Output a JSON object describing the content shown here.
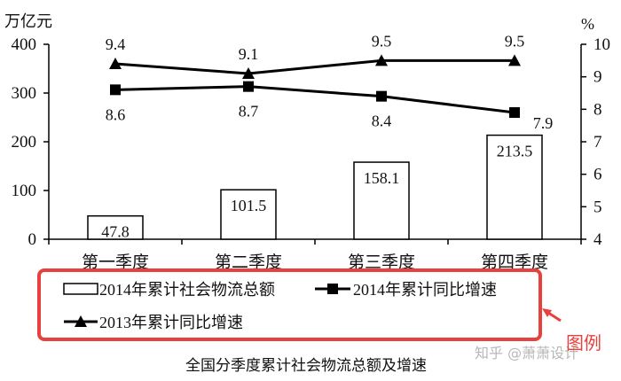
{
  "chart_data": {
    "type": "bar+line",
    "categories": [
      "第一季度",
      "第二季度",
      "第三季度",
      "第四季度"
    ],
    "left_axis": {
      "unit": "万亿元",
      "ticks": [
        0,
        100,
        200,
        300,
        400
      ],
      "range": [
        0,
        400
      ]
    },
    "right_axis": {
      "unit": "%",
      "ticks": [
        4,
        5,
        6,
        7,
        8,
        9,
        10
      ],
      "range": [
        4,
        10
      ]
    },
    "bars": {
      "name": "2014年累计社会物流总额",
      "values": [
        47.8,
        101.5,
        158.1,
        213.5
      ],
      "labels": [
        "47.8",
        "101.5",
        "158.1",
        "213.5"
      ]
    },
    "lines": [
      {
        "name": "2014年累计同比增速",
        "marker": "square",
        "values": [
          8.6,
          8.7,
          8.4,
          7.9
        ],
        "labels": [
          "8.6",
          "8.7",
          "8.4",
          "7.9"
        ]
      },
      {
        "name": "2013年累计同比增速",
        "marker": "triangle",
        "values": [
          9.4,
          9.1,
          9.5,
          9.5
        ],
        "labels": [
          "9.4",
          "9.1",
          "9.5",
          "9.5"
        ]
      }
    ],
    "legend_position": "bottom",
    "title": "全国分季度累计社会物流总额及增速"
  },
  "legend": {
    "items": [
      "2014年累计社会物流总额",
      "2014年累计同比增速",
      "2013年累计同比增速"
    ]
  },
  "annotations": {
    "callout": "图例",
    "watermark": "知乎 @萧萧设计",
    "highlight_color": "#e8413d"
  }
}
